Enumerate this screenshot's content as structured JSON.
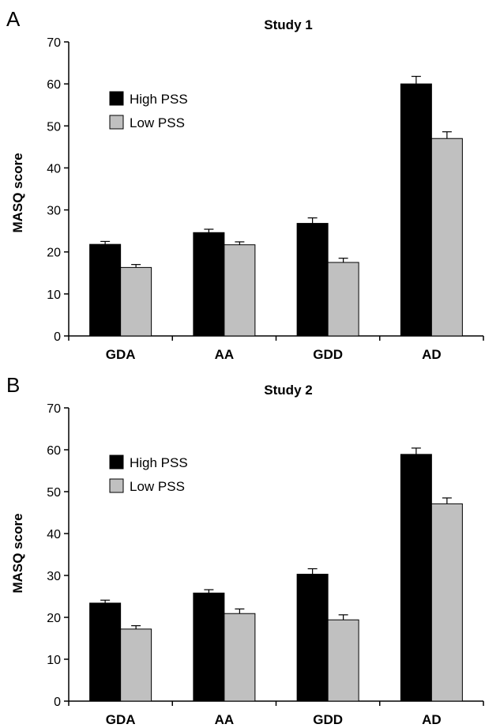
{
  "colors": {
    "high": "#000000",
    "low": "#c0c0c0",
    "axis": "#000000"
  },
  "chart_data": [
    {
      "type": "bar",
      "panel": "A",
      "title": "Study 1",
      "ylabel": "MASQ score",
      "xlabel": "",
      "ylim": [
        0,
        70
      ],
      "yticks": [
        0,
        10,
        20,
        30,
        40,
        50,
        60,
        70
      ],
      "categories": [
        "GDA",
        "AA",
        "GDD",
        "AD"
      ],
      "legend_position": "top-left",
      "grid": false,
      "series": [
        {
          "name": "High PSS",
          "values": [
            21.8,
            24.6,
            26.8,
            60.0
          ],
          "errors": [
            0.7,
            0.8,
            1.3,
            1.8
          ]
        },
        {
          "name": "Low PSS",
          "values": [
            16.3,
            21.7,
            17.5,
            47.0
          ],
          "errors": [
            0.7,
            0.7,
            1.0,
            1.6
          ]
        }
      ]
    },
    {
      "type": "bar",
      "panel": "B",
      "title": "Study 2",
      "ylabel": "MASQ score",
      "xlabel": "",
      "ylim": [
        0,
        70
      ],
      "yticks": [
        0,
        10,
        20,
        30,
        40,
        50,
        60,
        70
      ],
      "categories": [
        "GDA",
        "AA",
        "GDD",
        "AD"
      ],
      "legend_position": "top-left",
      "grid": false,
      "series": [
        {
          "name": "High PSS",
          "values": [
            23.4,
            25.8,
            30.3,
            58.9
          ],
          "errors": [
            0.7,
            0.8,
            1.3,
            1.5
          ]
        },
        {
          "name": "Low PSS",
          "values": [
            17.2,
            20.9,
            19.4,
            47.1
          ],
          "errors": [
            0.8,
            1.1,
            1.2,
            1.4
          ]
        }
      ]
    }
  ]
}
